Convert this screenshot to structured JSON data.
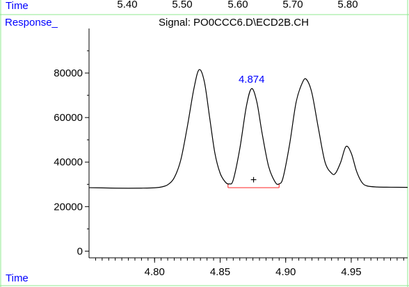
{
  "top_strip": {
    "time_label": "Time",
    "ticks": [
      "5.40",
      "5.50",
      "5.60",
      "5.70",
      "5.80"
    ]
  },
  "chart_data": {
    "type": "line",
    "response_label": "Response_",
    "signal_label": "Signal: PO0CCC6.D\\ECD2B.CH",
    "xlabel": "Time",
    "x_tick_labels": [
      "4.80",
      "4.85",
      "4.90",
      "4.95"
    ],
    "x_ticks": [
      4.8,
      4.85,
      4.9,
      4.95
    ],
    "y_tick_labels": [
      "0",
      "20000",
      "40000",
      "60000",
      "80000"
    ],
    "y_ticks": [
      0,
      20000,
      40000,
      60000,
      80000
    ],
    "xlim": [
      4.75,
      4.993
    ],
    "ylim": [
      -3000,
      100000
    ],
    "grid": false,
    "peak_annotation": {
      "label": "4.874",
      "time": 4.874
    },
    "integration": {
      "start": 4.856,
      "end": 4.895,
      "level": 28500,
      "marker": "+"
    },
    "series": [
      {
        "values": [
          [
            4.75,
            28500
          ],
          [
            4.76,
            28400
          ],
          [
            4.77,
            28300
          ],
          [
            4.78,
            28250
          ],
          [
            4.79,
            28300
          ],
          [
            4.8,
            28450
          ],
          [
            4.805,
            28800
          ],
          [
            4.81,
            29800
          ],
          [
            4.815,
            33000
          ],
          [
            4.82,
            41000
          ],
          [
            4.825,
            56000
          ],
          [
            4.83,
            73000
          ],
          [
            4.834,
            81500
          ],
          [
            4.838,
            76000
          ],
          [
            4.842,
            60000
          ],
          [
            4.846,
            44000
          ],
          [
            4.85,
            35000
          ],
          [
            4.854,
            31000
          ],
          [
            4.857,
            30200
          ],
          [
            4.86,
            32000
          ],
          [
            4.865,
            46000
          ],
          [
            4.87,
            65000
          ],
          [
            4.874,
            73000
          ],
          [
            4.878,
            67000
          ],
          [
            4.882,
            53000
          ],
          [
            4.887,
            38000
          ],
          [
            4.892,
            31000
          ],
          [
            4.895,
            30200
          ],
          [
            4.898,
            33000
          ],
          [
            4.903,
            48000
          ],
          [
            4.908,
            67000
          ],
          [
            4.913,
            76000
          ],
          [
            4.916,
            77000
          ],
          [
            4.92,
            71000
          ],
          [
            4.925,
            55000
          ],
          [
            4.93,
            40000
          ],
          [
            4.935,
            35000
          ],
          [
            4.938,
            35000
          ],
          [
            4.942,
            40000
          ],
          [
            4.946,
            47000
          ],
          [
            4.95,
            44000
          ],
          [
            4.954,
            36000
          ],
          [
            4.958,
            31000
          ],
          [
            4.962,
            29300
          ],
          [
            4.97,
            28800
          ],
          [
            4.98,
            28700
          ],
          [
            4.993,
            28650
          ]
        ]
      }
    ]
  },
  "colors": {
    "frame": "#8fe88f",
    "label_blue": "#0000ff",
    "integration_red": "#ff3b3b",
    "axis": "#000000",
    "trace": "#000000"
  }
}
